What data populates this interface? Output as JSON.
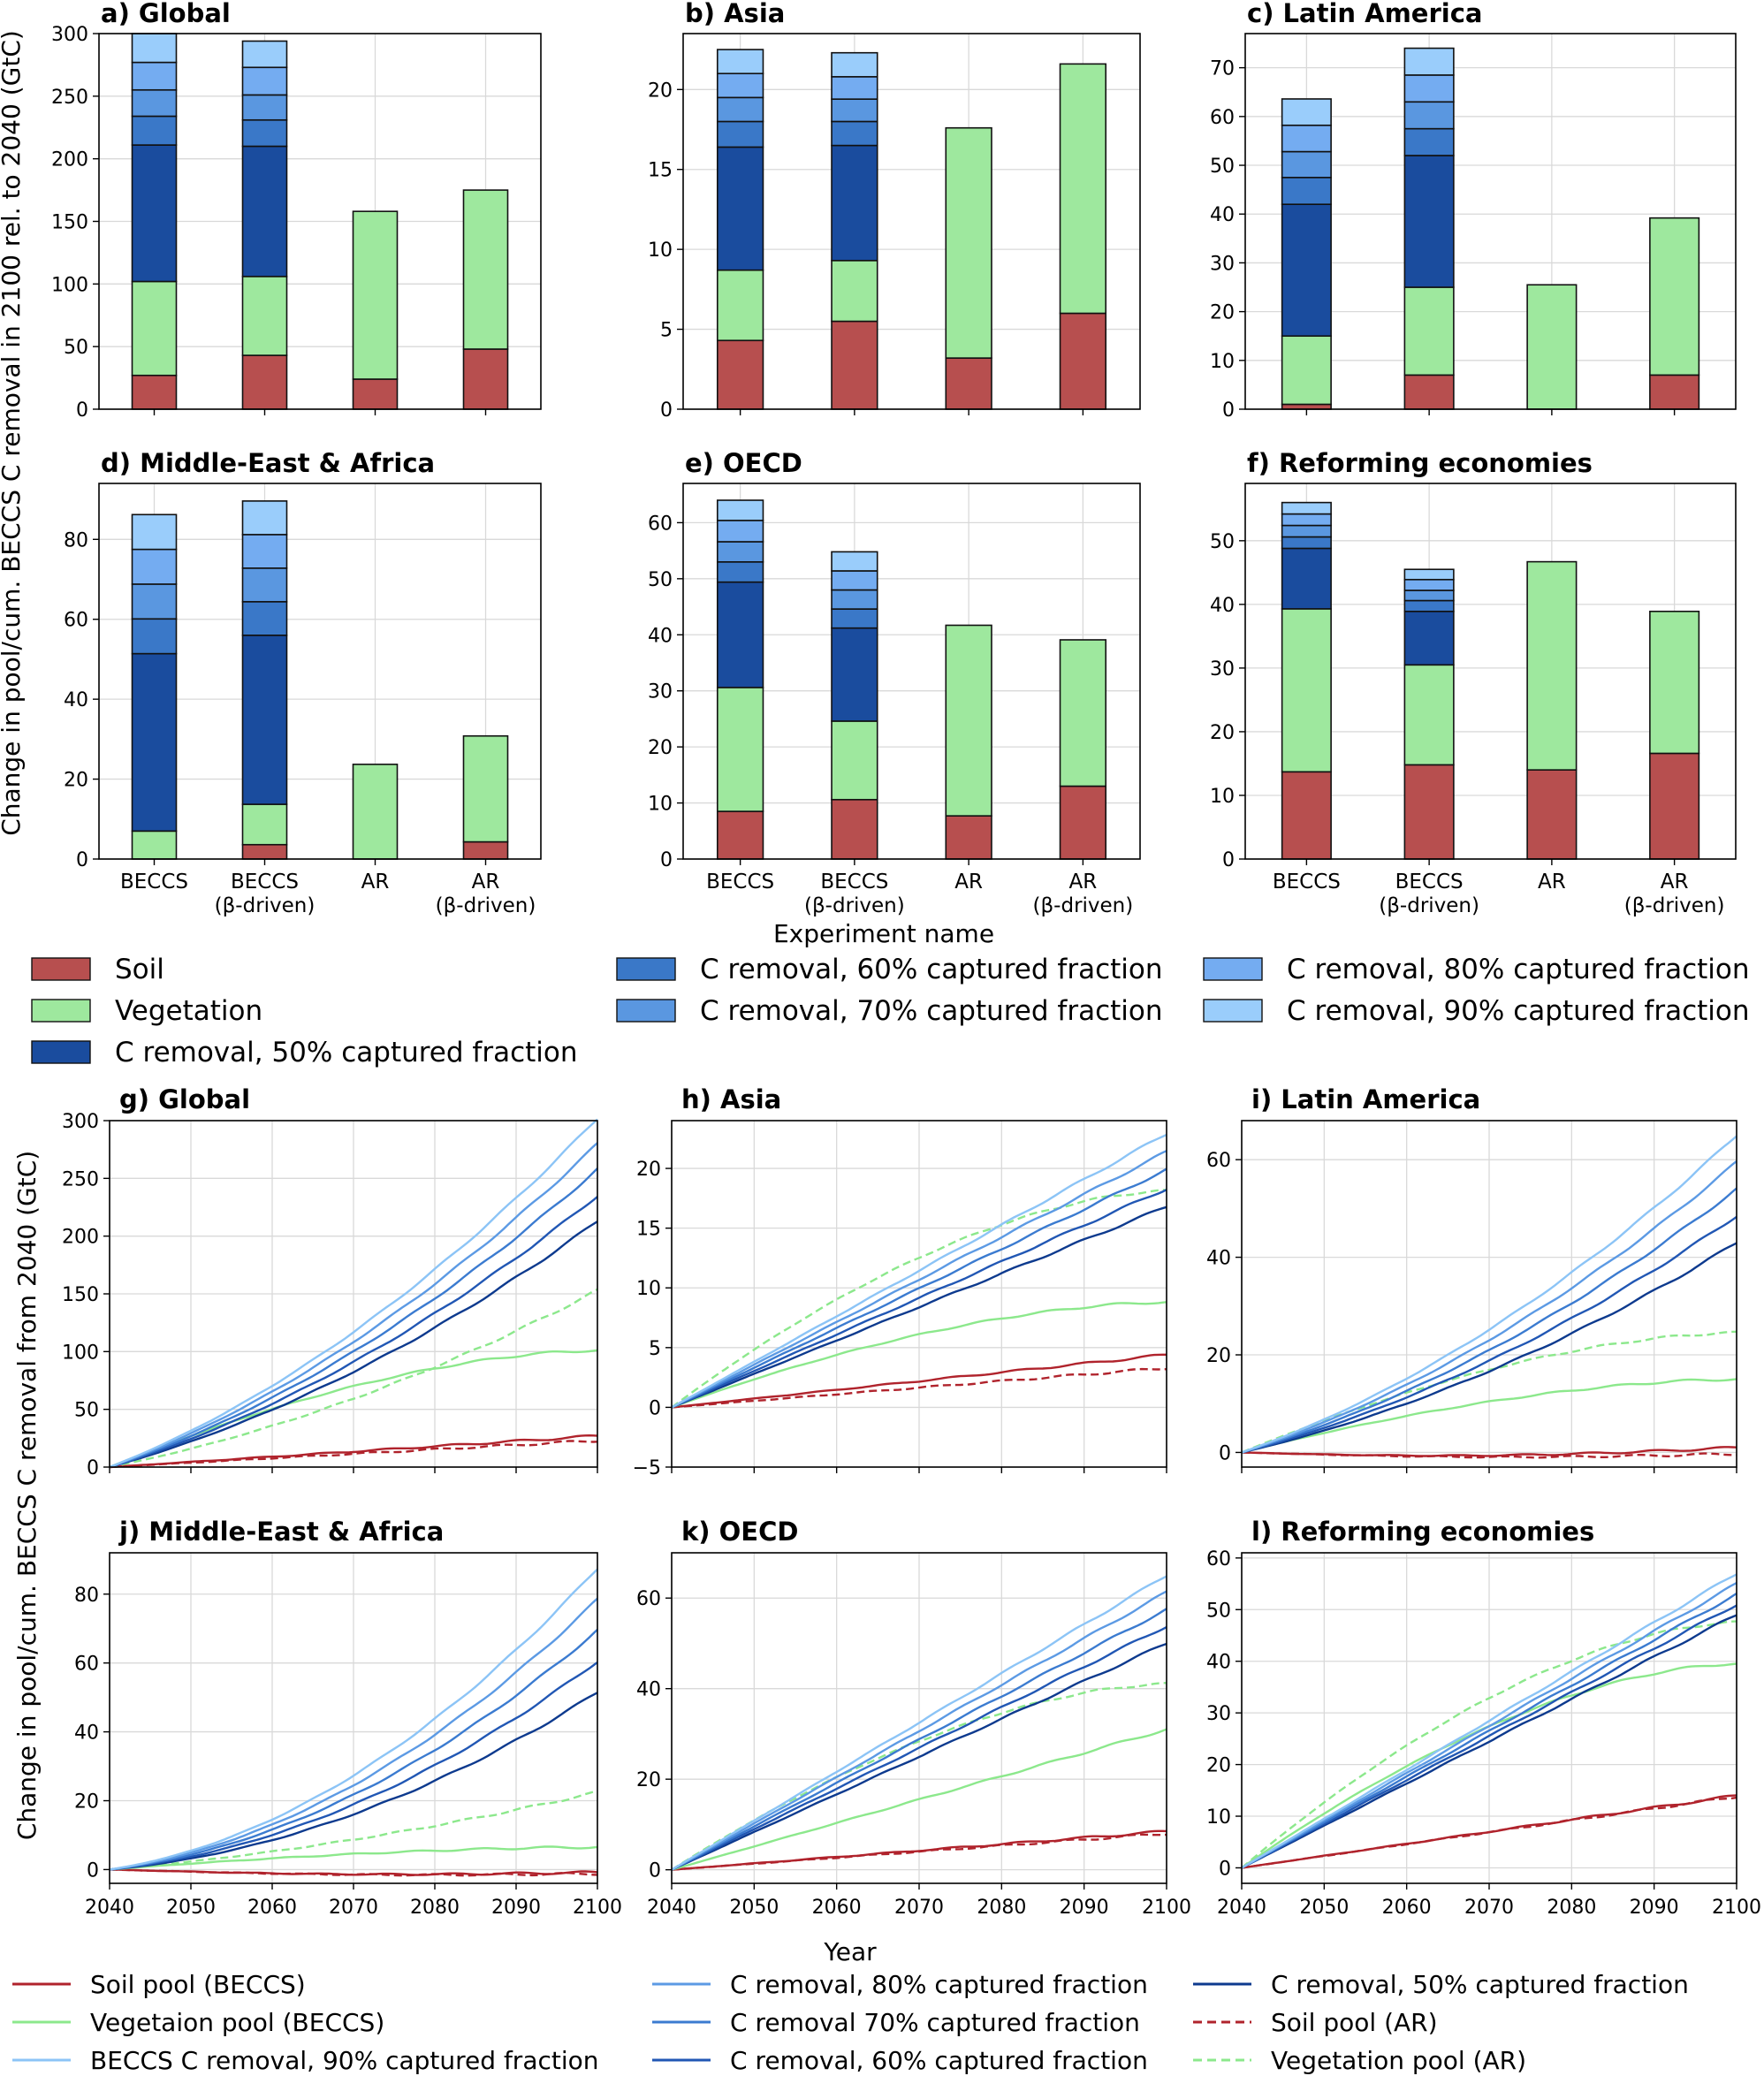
{
  "colors": {
    "soil": "#b74f4f",
    "vegetation": "#9ee89e",
    "c50": "#1a4c9e",
    "c60": "#3a78c8",
    "c70": "#5a97e0",
    "c80": "#74acf1",
    "c90": "#9acdfb",
    "soil_line": "#b0232c",
    "veg_line": "#8ce88c",
    "line50": "#0d3a8e",
    "line60": "#2157b4",
    "line70": "#3b7bd0",
    "line80": "#5c9ae4",
    "line90": "#8cc4f6"
  },
  "axis_labels": {
    "top_y": "Change in pool/cum. BECCS C removal in 2100 rel. to 2040 (GtC)",
    "top_x": "Experiment name",
    "bottom_y": "Change in pool/cum. BECCS C removal from 2040 (GtC)",
    "bottom_x": "Year"
  },
  "bar_legend": [
    {
      "label": "Soil",
      "color": "soil"
    },
    {
      "label": "Vegetation",
      "color": "vegetation"
    },
    {
      "label": "C removal, 50% captured fraction",
      "color": "c50"
    },
    {
      "label": "C removal, 60% captured fraction",
      "color": "c60"
    },
    {
      "label": "C removal, 70% captured fraction",
      "color": "c70"
    },
    {
      "label": "C removal, 80% captured fraction",
      "color": "c80"
    },
    {
      "label": "C removal, 90% captured fraction",
      "color": "c90"
    }
  ],
  "line_legend": [
    {
      "label": "Soil pool (BECCS)",
      "color": "soil_line",
      "dash": false
    },
    {
      "label": "Vegetaion pool (BECCS)",
      "color": "veg_line",
      "dash": false
    },
    {
      "label": "BECCS C removal, 90% captured fraction",
      "color": "line90",
      "dash": false
    },
    {
      "label": "C removal, 80% captured fraction",
      "color": "line80",
      "dash": false
    },
    {
      "label": "C removal 70% captured fraction",
      "color": "line70",
      "dash": false
    },
    {
      "label": "C removal, 60% captured fraction",
      "color": "line60",
      "dash": false
    },
    {
      "label": "C removal, 50% captured fraction",
      "color": "line50",
      "dash": false
    },
    {
      "label": "Soil pool (AR)",
      "color": "soil_line",
      "dash": true
    },
    {
      "label": "Vegetation pool (AR)",
      "color": "veg_line",
      "dash": true
    }
  ],
  "chart_data": [
    {
      "type": "bar",
      "id": "a",
      "title": "a) Global",
      "categories": [
        [
          "BECCS"
        ],
        [
          "BECCS",
          "(β-driven)"
        ],
        [
          "AR"
        ],
        [
          "AR",
          "(β-driven)"
        ]
      ],
      "ylim": [
        0,
        300
      ],
      "yticks": [
        0,
        50,
        100,
        150,
        200,
        250,
        300
      ],
      "bars": [
        {
          "soil": 27,
          "veg": 102,
          "c50": 211,
          "c60": 234,
          "c70": 255,
          "c80": 277,
          "c90": 300
        },
        {
          "soil": 43,
          "veg": 106,
          "c50": 210,
          "c60": 231,
          "c70": 251,
          "c80": 273,
          "c90": 294
        },
        {
          "soil": 24,
          "veg": 158
        },
        {
          "soil": 48,
          "veg": 175
        }
      ]
    },
    {
      "type": "bar",
      "id": "b",
      "title": "b) Asia",
      "categories": [
        [
          "BECCS"
        ],
        [
          "BECCS",
          "(β-driven)"
        ],
        [
          "AR"
        ],
        [
          "AR",
          "(β-driven)"
        ]
      ],
      "ylim": [
        0,
        23.5
      ],
      "yticks": [
        0,
        5,
        10,
        15,
        20
      ],
      "bars": [
        {
          "soil": 4.3,
          "veg": 8.7,
          "c50": 16.4,
          "c60": 18.0,
          "c70": 19.5,
          "c80": 21.0,
          "c90": 22.5
        },
        {
          "soil": 5.5,
          "veg": 9.3,
          "c50": 16.5,
          "c60": 18.0,
          "c70": 19.4,
          "c80": 20.8,
          "c90": 22.3
        },
        {
          "soil": 3.2,
          "veg": 17.6
        },
        {
          "soil": 6.0,
          "veg": 21.6
        }
      ]
    },
    {
      "type": "bar",
      "id": "c",
      "title": "c) Latin America",
      "categories": [
        [
          "BECCS"
        ],
        [
          "BECCS",
          "(β-driven)"
        ],
        [
          "AR"
        ],
        [
          "AR",
          "(β-driven)"
        ]
      ],
      "ylim": [
        0,
        77
      ],
      "yticks": [
        0,
        10,
        20,
        30,
        40,
        50,
        60,
        70
      ],
      "bars": [
        {
          "soil": 1.0,
          "veg": 15,
          "c50": 42,
          "c60": 47.5,
          "c70": 52.8,
          "c80": 58.2,
          "c90": 63.6
        },
        {
          "soil": 7.0,
          "veg": 25,
          "c50": 52,
          "c60": 57.5,
          "c70": 63,
          "c80": 68.5,
          "c90": 74
        },
        {
          "soil": 0,
          "veg": 25.5
        },
        {
          "soil": 7.0,
          "veg": 39.2
        }
      ]
    },
    {
      "type": "bar",
      "id": "d",
      "title": "d) Middle-East & Africa",
      "categories": [
        [
          "BECCS"
        ],
        [
          "BECCS",
          "(β-driven)"
        ],
        [
          "AR"
        ],
        [
          "AR",
          "(β-driven)"
        ]
      ],
      "ylim": [
        0,
        94
      ],
      "yticks": [
        0,
        20,
        40,
        60,
        80
      ],
      "bars": [
        {
          "soil": 0,
          "veg": 7,
          "c50": 51.4,
          "c60": 60.1,
          "c70": 68.8,
          "c80": 77.5,
          "c90": 86.2
        },
        {
          "soil": 3.6,
          "veg": 13.7,
          "c50": 56,
          "c60": 64.4,
          "c70": 72.8,
          "c80": 81.2,
          "c90": 89.6
        },
        {
          "soil": 0,
          "veg": 23.7
        },
        {
          "soil": 4.3,
          "veg": 30.8
        }
      ]
    },
    {
      "type": "bar",
      "id": "e",
      "title": "e) OECD",
      "categories": [
        [
          "BECCS"
        ],
        [
          "BECCS",
          "(β-driven)"
        ],
        [
          "AR"
        ],
        [
          "AR",
          "(β-driven)"
        ]
      ],
      "ylim": [
        0,
        67
      ],
      "yticks": [
        0,
        10,
        20,
        30,
        40,
        50,
        60
      ],
      "bars": [
        {
          "soil": 8.5,
          "veg": 30.6,
          "c50": 49.4,
          "c60": 53.0,
          "c70": 56.6,
          "c80": 60.4,
          "c90": 64.0
        },
        {
          "soil": 10.6,
          "veg": 24.6,
          "c50": 41.2,
          "c60": 44.6,
          "c70": 48.0,
          "c80": 51.4,
          "c90": 54.8
        },
        {
          "soil": 7.7,
          "veg": 41.7
        },
        {
          "soil": 13.0,
          "veg": 39.1
        }
      ]
    },
    {
      "type": "bar",
      "id": "f",
      "title": "f) Reforming economies",
      "categories": [
        [
          "BECCS"
        ],
        [
          "BECCS",
          "(β-driven)"
        ],
        [
          "AR"
        ],
        [
          "AR",
          "(β-driven)"
        ]
      ],
      "ylim": [
        0,
        59
      ],
      "yticks": [
        0,
        10,
        20,
        30,
        40,
        50
      ],
      "bars": [
        {
          "soil": 13.7,
          "veg": 39.3,
          "c50": 48.8,
          "c60": 50.6,
          "c70": 52.4,
          "c80": 54.2,
          "c90": 56.0
        },
        {
          "soil": 14.8,
          "veg": 30.5,
          "c50": 38.9,
          "c60": 40.6,
          "c70": 42.2,
          "c80": 43.9,
          "c90": 45.5
        },
        {
          "soil": 14.0,
          "veg": 46.7
        },
        {
          "soil": 16.6,
          "veg": 38.9
        }
      ]
    },
    {
      "type": "line",
      "id": "g",
      "title": "g) Global",
      "x": [
        2040,
        2100
      ],
      "ylim": [
        0,
        300
      ],
      "yticks": [
        0,
        50,
        100,
        150,
        200,
        250,
        300
      ],
      "series": [
        {
          "name": "Soil pool (BECCS)",
          "end": 27,
          "shape": "lin"
        },
        {
          "name": "Soil pool (AR)",
          "end": 23,
          "shape": "lin",
          "dash": true
        },
        {
          "name": "Vegetaion pool (BECCS)",
          "end": 101,
          "shape": "sat"
        },
        {
          "name": "Vegetation pool (AR)",
          "end": 153,
          "shape": "conv",
          "dash": true
        },
        {
          "name": "C removal 50%",
          "end": 213,
          "shape": "conv"
        },
        {
          "name": "C removal 60%",
          "end": 235,
          "shape": "conv"
        },
        {
          "name": "C removal 70%",
          "end": 258,
          "shape": "conv"
        },
        {
          "name": "C removal 80%",
          "end": 280,
          "shape": "conv"
        },
        {
          "name": "C removal 90%",
          "end": 302,
          "shape": "conv"
        }
      ]
    },
    {
      "type": "line",
      "id": "h",
      "title": "h) Asia",
      "x": [
        2040,
        2100
      ],
      "ylim": [
        -5,
        24
      ],
      "yticks": [
        -5,
        0,
        5,
        10,
        15,
        20
      ],
      "series": [
        {
          "name": "Soil pool (BECCS)",
          "end": 4.4,
          "shape": "lin"
        },
        {
          "name": "Soil pool (AR)",
          "end": 3.3,
          "shape": "lin",
          "dash": true
        },
        {
          "name": "Vegetaion pool (BECCS)",
          "end": 8.8,
          "shape": "sat"
        },
        {
          "name": "Vegetation pool (AR)",
          "end": 18.1,
          "shape": "sat",
          "dash": true
        },
        {
          "name": "C removal 50%",
          "end": 16.8,
          "shape": "lin"
        },
        {
          "name": "C removal 60%",
          "end": 18.3,
          "shape": "lin"
        },
        {
          "name": "C removal 70%",
          "end": 19.9,
          "shape": "lin"
        },
        {
          "name": "C removal 80%",
          "end": 21.4,
          "shape": "lin"
        },
        {
          "name": "C removal 90%",
          "end": 22.9,
          "shape": "lin"
        }
      ]
    },
    {
      "type": "line",
      "id": "i",
      "title": "i) Latin America",
      "x": [
        2040,
        2100
      ],
      "ylim": [
        -3,
        68
      ],
      "yticks": [
        0,
        20,
        40,
        60
      ],
      "series": [
        {
          "name": "Soil pool (BECCS)",
          "end": 1.0,
          "shape": "dip"
        },
        {
          "name": "Soil pool (AR)",
          "end": -0.3,
          "shape": "dip",
          "dash": true
        },
        {
          "name": "Vegetaion pool (BECCS)",
          "end": 15,
          "shape": "sat"
        },
        {
          "name": "Vegetation pool (AR)",
          "end": 24.5,
          "shape": "sat",
          "dash": true
        },
        {
          "name": "C removal 50%",
          "end": 43,
          "shape": "conv"
        },
        {
          "name": "C removal 60%",
          "end": 48.5,
          "shape": "conv"
        },
        {
          "name": "C removal 70%",
          "end": 54,
          "shape": "conv"
        },
        {
          "name": "C removal 80%",
          "end": 59.5,
          "shape": "conv"
        },
        {
          "name": "C removal 90%",
          "end": 65,
          "shape": "conv"
        }
      ]
    },
    {
      "type": "line",
      "id": "j",
      "title": "j) Middle-East & Africa",
      "x": [
        2040,
        2100
      ],
      "ylim": [
        -4,
        92
      ],
      "yticks": [
        0,
        20,
        40,
        60,
        80
      ],
      "series": [
        {
          "name": "Soil pool (BECCS)",
          "end": -0.8,
          "shape": "dip"
        },
        {
          "name": "Soil pool (AR)",
          "end": -1.2,
          "shape": "dip",
          "dash": true
        },
        {
          "name": "Vegetaion pool (BECCS)",
          "end": 6.5,
          "shape": "sat"
        },
        {
          "name": "Vegetation pool (AR)",
          "end": 22.5,
          "shape": "conv",
          "dash": true
        },
        {
          "name": "C removal 50%",
          "end": 51.5,
          "shape": "conv2"
        },
        {
          "name": "C removal 60%",
          "end": 60.5,
          "shape": "conv2"
        },
        {
          "name": "C removal 70%",
          "end": 69.5,
          "shape": "conv2"
        },
        {
          "name": "C removal 80%",
          "end": 78.5,
          "shape": "conv2"
        },
        {
          "name": "C removal 90%",
          "end": 87.5,
          "shape": "conv2"
        }
      ]
    },
    {
      "type": "line",
      "id": "k",
      "title": "k) OECD",
      "x": [
        2040,
        2100
      ],
      "ylim": [
        -3,
        70
      ],
      "yticks": [
        0,
        20,
        40,
        60
      ],
      "series": [
        {
          "name": "Soil pool (BECCS)",
          "end": 8.5,
          "shape": "lin"
        },
        {
          "name": "Soil pool (AR)",
          "end": 8.0,
          "shape": "lin",
          "dash": true
        },
        {
          "name": "Vegetaion pool (BECCS)",
          "end": 31,
          "shape": "lin"
        },
        {
          "name": "Vegetation pool (AR)",
          "end": 41,
          "shape": "sat",
          "dash": true
        },
        {
          "name": "C removal 50%",
          "end": 50,
          "shape": "lin"
        },
        {
          "name": "C removal 60%",
          "end": 53.8,
          "shape": "lin"
        },
        {
          "name": "C removal 70%",
          "end": 57.5,
          "shape": "lin"
        },
        {
          "name": "C removal 80%",
          "end": 61.3,
          "shape": "lin"
        },
        {
          "name": "C removal 90%",
          "end": 65,
          "shape": "lin"
        }
      ]
    },
    {
      "type": "line",
      "id": "l",
      "title": "l) Reforming economies",
      "x": [
        2040,
        2100
      ],
      "ylim": [
        -3,
        61
      ],
      "yticks": [
        0,
        10,
        20,
        30,
        40,
        50,
        60
      ],
      "series": [
        {
          "name": "Soil pool (BECCS)",
          "end": 14,
          "shape": "lin"
        },
        {
          "name": "Soil pool (AR)",
          "end": 13.8,
          "shape": "lin",
          "dash": true
        },
        {
          "name": "Vegetaion pool (BECCS)",
          "end": 39.5,
          "shape": "sat"
        },
        {
          "name": "Vegetation pool (AR)",
          "end": 47.5,
          "shape": "sat",
          "dash": true
        },
        {
          "name": "C removal 50%",
          "end": 49,
          "shape": "lin"
        },
        {
          "name": "C removal 60%",
          "end": 51,
          "shape": "lin"
        },
        {
          "name": "C removal 70%",
          "end": 53,
          "shape": "lin"
        },
        {
          "name": "C removal 80%",
          "end": 55,
          "shape": "lin"
        },
        {
          "name": "C removal 90%",
          "end": 57,
          "shape": "lin"
        }
      ]
    }
  ],
  "year_ticks": [
    2040,
    2050,
    2060,
    2070,
    2080,
    2090,
    2100
  ]
}
